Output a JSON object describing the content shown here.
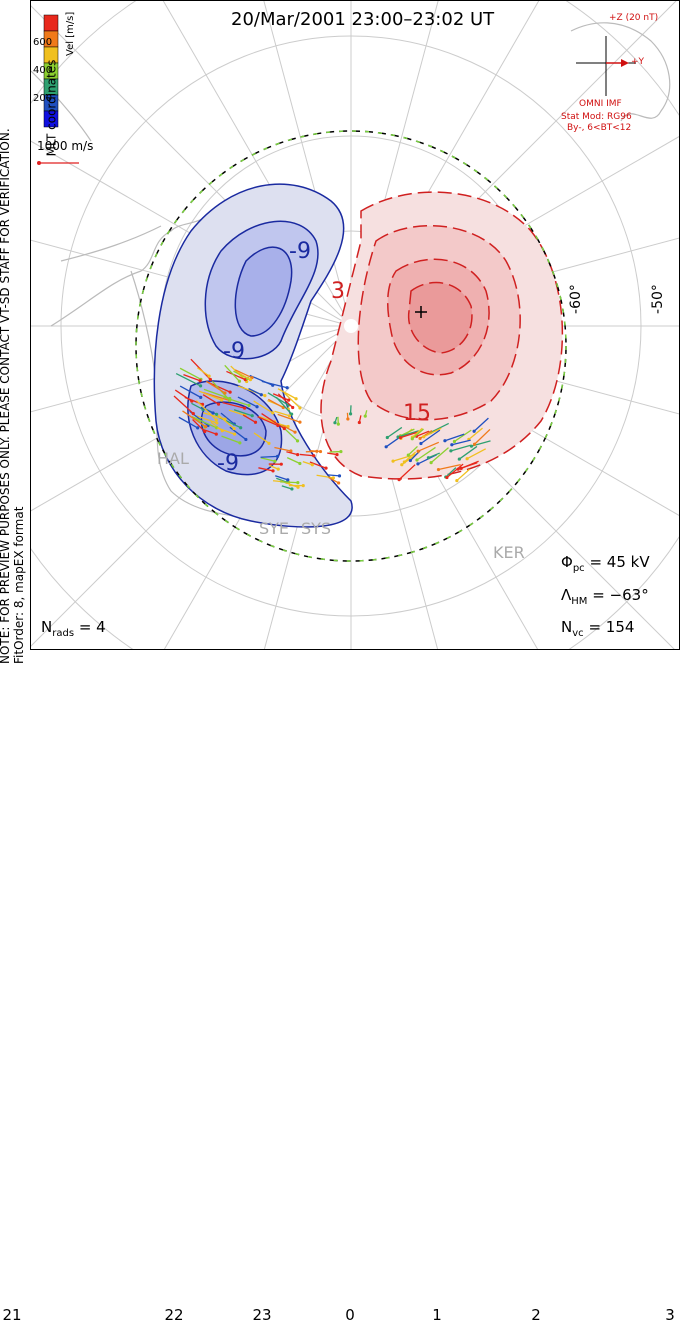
{
  "title": "20/Mar/2001 23:00–23:02 UT",
  "side_note": [
    "NOTE: FOR PREVIEW PURPOSES ONLY. PLEASE CONTACT VT-SD STAFF FOR VERIFICATION.",
    "FitOrder: 8, mapEX format"
  ],
  "coordinate_label": "MLT coordinates",
  "colorbar": {
    "label": "Vel [m/s]",
    "ticks": [
      "600",
      "400",
      "200"
    ],
    "colors": [
      "#e8281c",
      "#f07a1a",
      "#f0c020",
      "#8cd030",
      "#2ea070",
      "#2050c0",
      "#1010e0"
    ]
  },
  "scale_vector": {
    "label": "1000 m/s",
    "color": "#e02020"
  },
  "imf": {
    "z_label": "+Z (20 nT)",
    "y_label": "+Y",
    "source": "OMNI IMF",
    "model": "Stat Mod: RG96",
    "model_params": "By-, 6<BT<12",
    "color": "#d01010"
  },
  "latitude_labels": [
    "-60°",
    "-50°"
  ],
  "stations": [
    "HAL",
    "SYE",
    "SYS",
    "KER"
  ],
  "contour_labels": {
    "neg1": "-9",
    "neg2": "-9",
    "neg3": "-9",
    "pos1": "3",
    "pos2": "15"
  },
  "stats": {
    "phi_pc": {
      "symbol": "Φ",
      "sub": "pc",
      "value": "= 45 kV"
    },
    "lambda_hm": {
      "symbol": "Λ",
      "sub": "HM",
      "value": "= −63°"
    },
    "n_vc": {
      "symbol": "N",
      "sub": "vc",
      "value": "= 154"
    },
    "n_rads": {
      "symbol": "N",
      "sub": "rads",
      "value": "= 4"
    }
  },
  "x_axis": {
    "ticks": [
      "21",
      "22",
      "23",
      "0",
      "1",
      "2",
      "3"
    ]
  },
  "potential": {
    "neg_color": "#3040c0",
    "pos_color": "#d02020"
  }
}
